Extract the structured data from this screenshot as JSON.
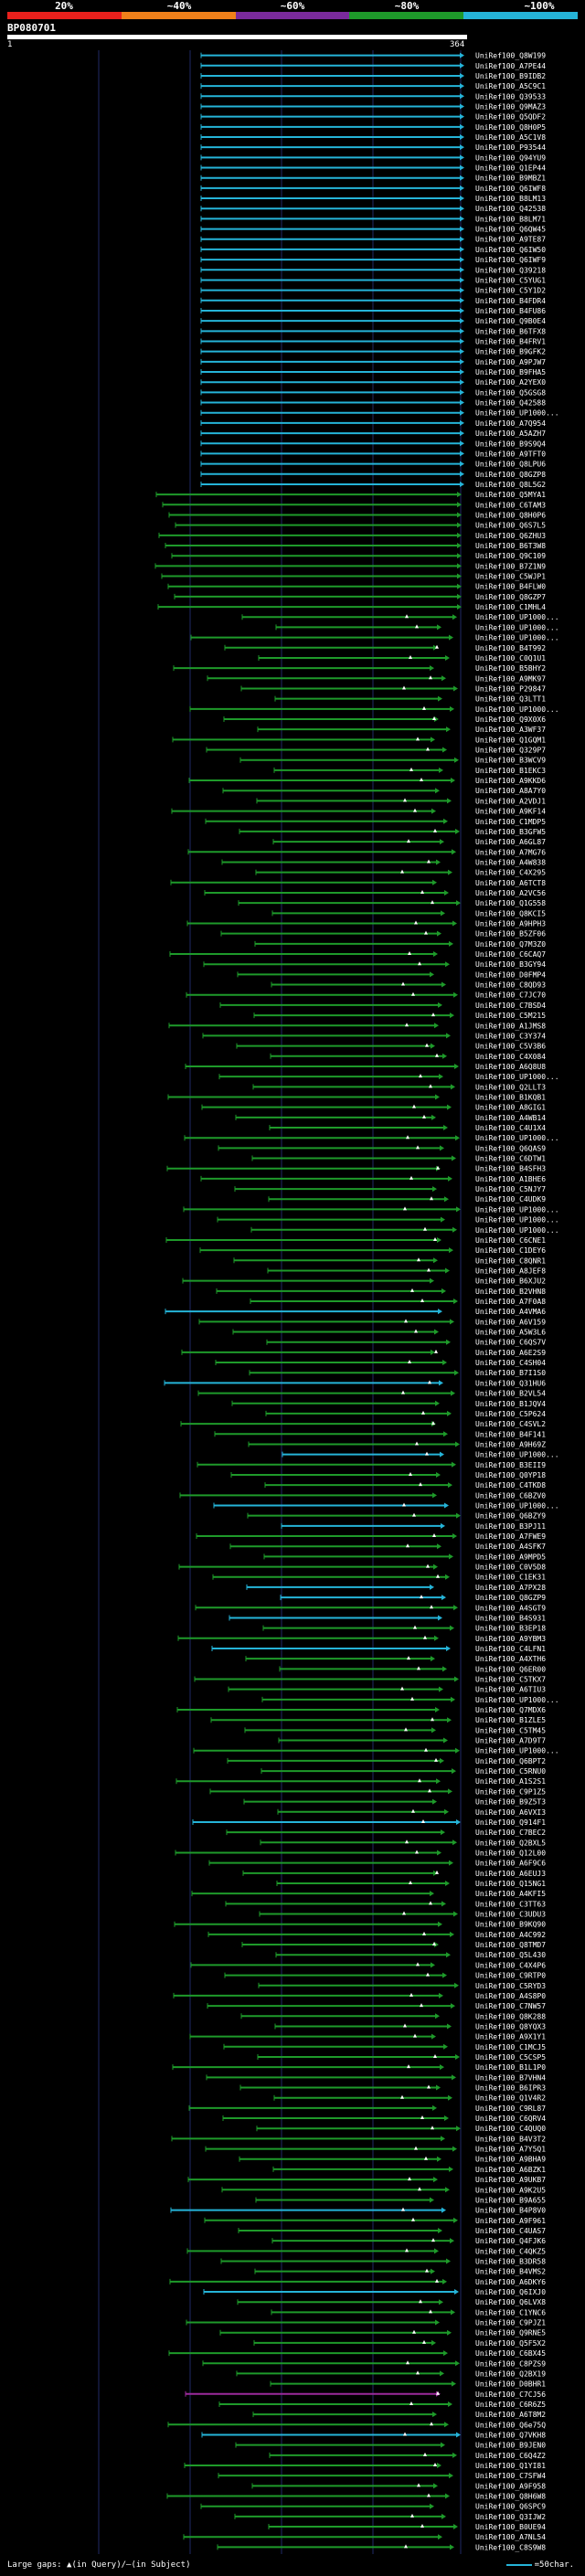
{
  "scale": {
    "labels": [
      "20%",
      "~40%",
      "~60%",
      "~80%",
      "~100%"
    ],
    "colors": [
      "#e8201c",
      "#f0801a",
      "#7a2a9c",
      "#1e9a2a",
      "#25b4d8"
    ]
  },
  "query": {
    "name": "BP080701",
    "start": "1",
    "end": "364"
  },
  "footer": {
    "gaps_text": "Large gaps: ▲(in Query)/—(in Subject)",
    "legend_text": "=50char."
  },
  "hit_colors": {
    "cyan": "#25b4d8",
    "green": "#1e9a2a",
    "purple": "#9c2a9c",
    "marker": "#ffffff"
  },
  "hits": [
    {
      "id": "UniRef100_Q8W199",
      "color": "cyan"
    },
    {
      "id": "UniRef100_A7PE44",
      "color": "cyan"
    },
    {
      "id": "UniRef100_B9IDB2",
      "color": "cyan"
    },
    {
      "id": "UniRef100_A5C9C1",
      "color": "cyan"
    },
    {
      "id": "UniRef100_Q39533",
      "color": "cyan"
    },
    {
      "id": "UniRef100_Q9MAZ3",
      "color": "cyan"
    },
    {
      "id": "UniRef100_Q5QDF2",
      "color": "cyan"
    },
    {
      "id": "UniRef100_Q8H0P5",
      "color": "cyan"
    },
    {
      "id": "UniRef100_A5C1V8",
      "color": "cyan"
    },
    {
      "id": "UniRef100_P93544",
      "color": "cyan"
    },
    {
      "id": "UniRef100_Q94YU9",
      "color": "cyan"
    },
    {
      "id": "UniRef100_Q1EP44",
      "color": "cyan"
    },
    {
      "id": "UniRef100_B9MBZ1",
      "color": "cyan"
    },
    {
      "id": "UniRef100_Q6IWF8",
      "color": "cyan"
    },
    {
      "id": "UniRef100_B8LM13",
      "color": "cyan"
    },
    {
      "id": "UniRef100_Q42538",
      "color": "cyan"
    },
    {
      "id": "UniRef100_B8LM71",
      "color": "cyan"
    },
    {
      "id": "UniRef100_Q6QW45",
      "color": "cyan"
    },
    {
      "id": "UniRef100_A9TE87",
      "color": "cyan"
    },
    {
      "id": "UniRef100_Q6IW50",
      "color": "cyan"
    },
    {
      "id": "UniRef100_Q6IWF9",
      "color": "cyan"
    },
    {
      "id": "UniRef100_Q39218",
      "color": "cyan"
    },
    {
      "id": "UniRef100_C5YUG1",
      "color": "cyan"
    },
    {
      "id": "UniRef100_C5Y1D2",
      "color": "cyan"
    },
    {
      "id": "UniRef100_B4FDR4",
      "color": "cyan"
    },
    {
      "id": "UniRef100_B4FU86",
      "color": "cyan"
    },
    {
      "id": "UniRef100_Q9B0E4",
      "color": "cyan"
    },
    {
      "id": "UniRef100_B6TFX8",
      "color": "cyan"
    },
    {
      "id": "UniRef100_B4FRV1",
      "color": "cyan"
    },
    {
      "id": "UniRef100_B9GFK2",
      "color": "cyan"
    },
    {
      "id": "UniRef100_A9PJW7",
      "color": "cyan"
    },
    {
      "id": "UniRef100_B9FHA5",
      "color": "cyan"
    },
    {
      "id": "UniRef100_A2YEX0",
      "color": "cyan"
    },
    {
      "id": "UniRef100_Q5GSG8",
      "color": "cyan"
    },
    {
      "id": "UniRef100_Q42588",
      "color": "cyan"
    },
    {
      "id": "UniRef100_UP1000...",
      "color": "cyan"
    },
    {
      "id": "UniRef100_A7Q954",
      "color": "cyan"
    },
    {
      "id": "UniRef100_A5AZH7",
      "color": "cyan"
    },
    {
      "id": "UniRef100_B9S9Q4",
      "color": "cyan"
    },
    {
      "id": "UniRef100_A9TFT0",
      "color": "cyan"
    },
    {
      "id": "UniRef100_Q8LPU6",
      "color": "cyan"
    },
    {
      "id": "UniRef100_Q8GZP8",
      "color": "cyan"
    },
    {
      "id": "UniRef100_Q8L5G2",
      "color": "cyan"
    },
    {
      "id": "UniRef100_Q5MYA1",
      "color": "green"
    },
    {
      "id": "UniRef100_C6TAM3",
      "color": "green"
    },
    {
      "id": "UniRef100_Q8H0P6",
      "color": "green"
    },
    {
      "id": "UniRef100_Q6S7L5",
      "color": "green"
    },
    {
      "id": "UniRef100_Q6ZHU3",
      "color": "green"
    },
    {
      "id": "UniRef100_B6T3W8",
      "color": "green"
    },
    {
      "id": "UniRef100_Q9C109",
      "color": "green"
    },
    {
      "id": "UniRef100_B7Z1N9",
      "color": "green"
    },
    {
      "id": "UniRef100_C5WJP1",
      "color": "green"
    },
    {
      "id": "UniRef100_B4FLW0",
      "color": "green"
    },
    {
      "id": "UniRef100_Q8GZP7",
      "color": "green"
    },
    {
      "id": "UniRef100_C1MHL4",
      "color": "green"
    },
    {
      "id": "UniRef100_UP1000...",
      "color": "green"
    },
    {
      "id": "UniRef100_UP1000...",
      "color": "green"
    },
    {
      "id": "UniRef100_UP1000...",
      "color": "green"
    },
    {
      "id": "UniRef100_B4T992",
      "color": "green"
    },
    {
      "id": "UniRef100_C0Q1U1",
      "color": "green"
    },
    {
      "id": "UniRef100_B5BHY2",
      "color": "green"
    },
    {
      "id": "UniRef100_A9MK97",
      "color": "green"
    },
    {
      "id": "UniRef100_P29847",
      "color": "green"
    },
    {
      "id": "UniRef100_Q3LTT1",
      "color": "green"
    },
    {
      "id": "UniRef100_UP1000...",
      "color": "green"
    },
    {
      "id": "UniRef100_Q9X0X6",
      "color": "green"
    },
    {
      "id": "UniRef100_A3WF37",
      "color": "green"
    },
    {
      "id": "UniRef100_Q1GQM1",
      "color": "green"
    },
    {
      "id": "UniRef100_Q329P7",
      "color": "green"
    },
    {
      "id": "UniRef100_B3WCV9",
      "color": "green"
    },
    {
      "id": "UniRef100_B1EKC3",
      "color": "green"
    },
    {
      "id": "UniRef100_A9KKD6",
      "color": "green"
    },
    {
      "id": "UniRef100_A8A7Y0",
      "color": "green"
    },
    {
      "id": "UniRef100_A2VDJ1",
      "color": "green"
    },
    {
      "id": "UniRef100_A9KF14",
      "color": "green"
    },
    {
      "id": "UniRef100_C1MDP5",
      "color": "green"
    },
    {
      "id": "UniRef100_B3GFW5",
      "color": "green"
    },
    {
      "id": "UniRef100_A6GL87",
      "color": "green"
    },
    {
      "id": "UniRef100_A7MG76",
      "color": "green"
    },
    {
      "id": "UniRef100_A4W838",
      "color": "green"
    },
    {
      "id": "UniRef100_C4X295",
      "color": "green"
    },
    {
      "id": "UniRef100_A6TCT8",
      "color": "green"
    },
    {
      "id": "UniRef100_A2VC56",
      "color": "green"
    },
    {
      "id": "UniRef100_Q1G558",
      "color": "green"
    },
    {
      "id": "UniRef100_Q8KCI5",
      "color": "green"
    },
    {
      "id": "UniRef100_A9HPH3",
      "color": "green"
    },
    {
      "id": "UniRef100_B5ZF06",
      "color": "green"
    },
    {
      "id": "UniRef100_Q7M3Z0",
      "color": "green"
    },
    {
      "id": "UniRef100_C6CAQ7",
      "color": "green"
    },
    {
      "id": "UniRef100_B3GY94",
      "color": "green"
    },
    {
      "id": "UniRef100_D0FMP4",
      "color": "green"
    },
    {
      "id": "UniRef100_C8QD93",
      "color": "green"
    },
    {
      "id": "UniRef100_C7JC70",
      "color": "green"
    },
    {
      "id": "UniRef100_C7BSD4",
      "color": "green"
    },
    {
      "id": "UniRef100_C5M215",
      "color": "green"
    },
    {
      "id": "UniRef100_A1JMS8",
      "color": "green"
    },
    {
      "id": "UniRef100_C3Y374",
      "color": "green"
    },
    {
      "id": "UniRef100_C5V3B6",
      "color": "green"
    },
    {
      "id": "UniRef100_C4X084",
      "color": "green"
    },
    {
      "id": "UniRef100_A6Q8U8",
      "color": "green"
    },
    {
      "id": "UniRef100_UP1000...",
      "color": "green"
    },
    {
      "id": "UniRef100_Q2LLT3",
      "color": "green"
    },
    {
      "id": "UniRef100_B1KQB1",
      "color": "green"
    },
    {
      "id": "UniRef100_A8GIG1",
      "color": "green"
    },
    {
      "id": "UniRef100_A4WB14",
      "color": "green"
    },
    {
      "id": "UniRef100_C4U1X4",
      "color": "green"
    },
    {
      "id": "UniRef100_UP1000...",
      "color": "green"
    },
    {
      "id": "UniRef100_Q6QAS9",
      "color": "green"
    },
    {
      "id": "UniRef100_C6DTW1",
      "color": "green"
    },
    {
      "id": "UniRef100_B4SFH3",
      "color": "green"
    },
    {
      "id": "UniRef100_A1BHE6",
      "color": "green"
    },
    {
      "id": "UniRef100_C5NJY7",
      "color": "green"
    },
    {
      "id": "UniRef100_C4UDK9",
      "color": "green"
    },
    {
      "id": "UniRef100_UP1000...",
      "color": "green"
    },
    {
      "id": "UniRef100_UP1000...",
      "color": "green"
    },
    {
      "id": "UniRef100_UP1000...",
      "color": "green"
    },
    {
      "id": "UniRef100_C6CNE1",
      "color": "green"
    },
    {
      "id": "UniRef100_C1DEY6",
      "color": "green"
    },
    {
      "id": "UniRef100_C8QNR1",
      "color": "green"
    },
    {
      "id": "UniRef100_A8JEF8",
      "color": "green"
    },
    {
      "id": "UniRef100_B6XJU2",
      "color": "green"
    },
    {
      "id": "UniRef100_B2VHN8",
      "color": "green"
    },
    {
      "id": "UniRef100_A7F0A8",
      "color": "green"
    },
    {
      "id": "UniRef100_A4VMA6",
      "color": "cyan"
    },
    {
      "id": "UniRef100_A6V159",
      "color": "green"
    },
    {
      "id": "UniRef100_A5W3L6",
      "color": "green"
    },
    {
      "id": "UniRef100_C6QS7V",
      "color": "green"
    },
    {
      "id": "UniRef100_A6E2S9",
      "color": "green"
    },
    {
      "id": "UniRef100_C4SH04",
      "color": "green"
    },
    {
      "id": "UniRef100_B7I1S0",
      "color": "green"
    },
    {
      "id": "UniRef100_Q31HU6",
      "color": "cyan"
    },
    {
      "id": "UniRef100_B2VL54",
      "color": "green"
    },
    {
      "id": "UniRef100_B1JQV4",
      "color": "green"
    },
    {
      "id": "UniRef100_C5P624",
      "color": "green"
    },
    {
      "id": "UniRef100_C4SVL2",
      "color": "green"
    },
    {
      "id": "UniRef100_B4F141",
      "color": "green"
    },
    {
      "id": "UniRef100_A9H69Z",
      "color": "green"
    },
    {
      "id": "UniRef100_UP1000...",
      "color": "cyan"
    },
    {
      "id": "UniRef100_B3EII9",
      "color": "green"
    },
    {
      "id": "UniRef100_Q0YP18",
      "color": "green"
    },
    {
      "id": "UniRef100_C4TKD8",
      "color": "green"
    },
    {
      "id": "UniRef100_C6BZV0",
      "color": "green"
    },
    {
      "id": "UniRef100_UP1000...",
      "color": "cyan"
    },
    {
      "id": "UniRef100_Q6BZY9",
      "color": "green"
    },
    {
      "id": "UniRef100_B3PJ11",
      "color": "cyan"
    },
    {
      "id": "UniRef100_A7FWE9",
      "color": "green"
    },
    {
      "id": "UniRef100_A4SFK7",
      "color": "green"
    },
    {
      "id": "UniRef100_A9MPD5",
      "color": "green"
    },
    {
      "id": "UniRef100_C0V5D8",
      "color": "green"
    },
    {
      "id": "UniRef100_C1EK31",
      "color": "green"
    },
    {
      "id": "UniRef100_A7PX28",
      "color": "cyan"
    },
    {
      "id": "UniRef100_Q8GZP9",
      "color": "cyan"
    },
    {
      "id": "UniRef100_A4SGT9",
      "color": "green"
    },
    {
      "id": "UniRef100_B4S931",
      "color": "cyan"
    },
    {
      "id": "UniRef100_B3EP18",
      "color": "green"
    },
    {
      "id": "UniRef100_A9YBM3",
      "color": "green"
    },
    {
      "id": "UniRef100_C4LFN1",
      "color": "cyan"
    },
    {
      "id": "UniRef100_A4XTH6",
      "color": "green"
    },
    {
      "id": "UniRef100_Q6ER00",
      "color": "green"
    },
    {
      "id": "UniRef100_C5TKX7",
      "color": "green"
    },
    {
      "id": "UniRef100_A6TIU3",
      "color": "green"
    },
    {
      "id": "UniRef100_UP1000...",
      "color": "green"
    },
    {
      "id": "UniRef100_Q7MDX6",
      "color": "green"
    },
    {
      "id": "UniRef100_B1ZLE5",
      "color": "green"
    },
    {
      "id": "UniRef100_C5TM45",
      "color": "green"
    },
    {
      "id": "UniRef100_A7D9T7",
      "color": "green"
    },
    {
      "id": "UniRef100_UP1000...",
      "color": "green"
    },
    {
      "id": "UniRef100_Q6BPT2",
      "color": "green"
    },
    {
      "id": "UniRef100_C5RNU0",
      "color": "green"
    },
    {
      "id": "UniRef100_A1S2S1",
      "color": "green"
    },
    {
      "id": "UniRef100_C9P1Z5",
      "color": "green"
    },
    {
      "id": "UniRef100_B9Z5T3",
      "color": "green"
    },
    {
      "id": "UniRef100_A6VXI3",
      "color": "green"
    },
    {
      "id": "UniRef100_Q914F1",
      "color": "cyan"
    },
    {
      "id": "UniRef100_C7BEC2",
      "color": "green"
    },
    {
      "id": "UniRef100_Q2BXL5",
      "color": "green"
    },
    {
      "id": "UniRef100_Q12L00",
      "color": "green"
    },
    {
      "id": "UniRef100_A6F9C6",
      "color": "green"
    },
    {
      "id": "UniRef100_A6EUJ3",
      "color": "green"
    },
    {
      "id": "UniRef100_Q15NG1",
      "color": "green"
    },
    {
      "id": "UniRef100_A4KFI5",
      "color": "green"
    },
    {
      "id": "UniRef100_C3TT63",
      "color": "green"
    },
    {
      "id": "UniRef100_C3UDU3",
      "color": "green"
    },
    {
      "id": "UniRef100_B9KQ90",
      "color": "green"
    },
    {
      "id": "UniRef100_A4C992",
      "color": "green"
    },
    {
      "id": "UniRef100_Q8TMD7",
      "color": "green"
    },
    {
      "id": "UniRef100_Q5L430",
      "color": "green"
    },
    {
      "id": "UniRef100_C4X4P6",
      "color": "green"
    },
    {
      "id": "UniRef100_C9RTP0",
      "color": "green"
    },
    {
      "id": "UniRef100_C5RYD3",
      "color": "green"
    },
    {
      "id": "UniRef100_A4S8P0",
      "color": "green"
    },
    {
      "id": "UniRef100_C7NW57",
      "color": "green"
    },
    {
      "id": "UniRef100_Q8K288",
      "color": "green"
    },
    {
      "id": "UniRef100_Q8YQX3",
      "color": "green"
    },
    {
      "id": "UniRef100_A9X1Y1",
      "color": "green"
    },
    {
      "id": "UniRef100_C1MCJ5",
      "color": "green"
    },
    {
      "id": "UniRef100_C5CSP5",
      "color": "green"
    },
    {
      "id": "UniRef100_B1L1P0",
      "color": "green"
    },
    {
      "id": "UniRef100_B7VHN4",
      "color": "green"
    },
    {
      "id": "UniRef100_B6IPR3",
      "color": "green"
    },
    {
      "id": "UniRef100_Q1V4R2",
      "color": "green"
    },
    {
      "id": "UniRef100_C9RL87",
      "color": "green"
    },
    {
      "id": "UniRef100_C6QRV4",
      "color": "green"
    },
    {
      "id": "UniRef100_C4QUQ0",
      "color": "green"
    },
    {
      "id": "UniRef100_B4V3T2",
      "color": "green"
    },
    {
      "id": "UniRef100_A7Y5Q1",
      "color": "green"
    },
    {
      "id": "UniRef100_A9BHA9",
      "color": "green"
    },
    {
      "id": "UniRef100_A6BZK1",
      "color": "green"
    },
    {
      "id": "UniRef100_A9UKB7",
      "color": "green"
    },
    {
      "id": "UniRef100_A9K2U5",
      "color": "green"
    },
    {
      "id": "UniRef100_B9A655",
      "color": "green"
    },
    {
      "id": "UniRef100_B4P8V0",
      "color": "cyan"
    },
    {
      "id": "UniRef100_A9F961",
      "color": "green"
    },
    {
      "id": "UniRef100_C4UAS7",
      "color": "green"
    },
    {
      "id": "UniRef100_Q4FJK6",
      "color": "green"
    },
    {
      "id": "UniRef100_C4QKZ5",
      "color": "green"
    },
    {
      "id": "UniRef100_B3DR58",
      "color": "green"
    },
    {
      "id": "UniRef100_B4VMS2",
      "color": "green"
    },
    {
      "id": "UniRef100_A6DKY6",
      "color": "green"
    },
    {
      "id": "UniRef100_Q6IXJ0",
      "color": "cyan"
    },
    {
      "id": "UniRef100_Q6LVX8",
      "color": "green"
    },
    {
      "id": "UniRef100_C1YNC6",
      "color": "green"
    },
    {
      "id": "UniRef100_C9PJZ1",
      "color": "green"
    },
    {
      "id": "UniRef100_Q9RNE5",
      "color": "green"
    },
    {
      "id": "UniRef100_Q5F5X2",
      "color": "green"
    },
    {
      "id": "UniRef100_C6BX45",
      "color": "green"
    },
    {
      "id": "UniRef100_C8PZS9",
      "color": "green"
    },
    {
      "id": "UniRef100_Q2BX19",
      "color": "green"
    },
    {
      "id": "UniRef100_D0BHR1",
      "color": "green"
    },
    {
      "id": "UniRef100_C7CJ56",
      "color": "purple"
    },
    {
      "id": "UniRef100_C6R6Z5",
      "color": "green"
    },
    {
      "id": "UniRef100_A6T8M2",
      "color": "green"
    },
    {
      "id": "UniRef100_Q6e75Q",
      "color": "green"
    },
    {
      "id": "UniRef100_Q7VKH8",
      "color": "cyan"
    },
    {
      "id": "UniRef100_B9JEN0",
      "color": "green"
    },
    {
      "id": "UniRef100_C6Q4Z2",
      "color": "green"
    },
    {
      "id": "UniRef100_Q1YI81",
      "color": "green"
    },
    {
      "id": "UniRef100_C7SFW4",
      "color": "green"
    },
    {
      "id": "UniRef100_A9F958",
      "color": "green"
    },
    {
      "id": "UniRef100_Q8H6W8",
      "color": "green"
    },
    {
      "id": "UniRef100_Q6SPC9",
      "color": "green"
    },
    {
      "id": "UniRef100_Q3IJW2",
      "color": "green"
    },
    {
      "id": "UniRef100_B0UE94",
      "color": "green"
    },
    {
      "id": "UniRef100_A7NL54",
      "color": "green"
    },
    {
      "id": "UniRef100_C8S9W8",
      "color": "green"
    }
  ]
}
